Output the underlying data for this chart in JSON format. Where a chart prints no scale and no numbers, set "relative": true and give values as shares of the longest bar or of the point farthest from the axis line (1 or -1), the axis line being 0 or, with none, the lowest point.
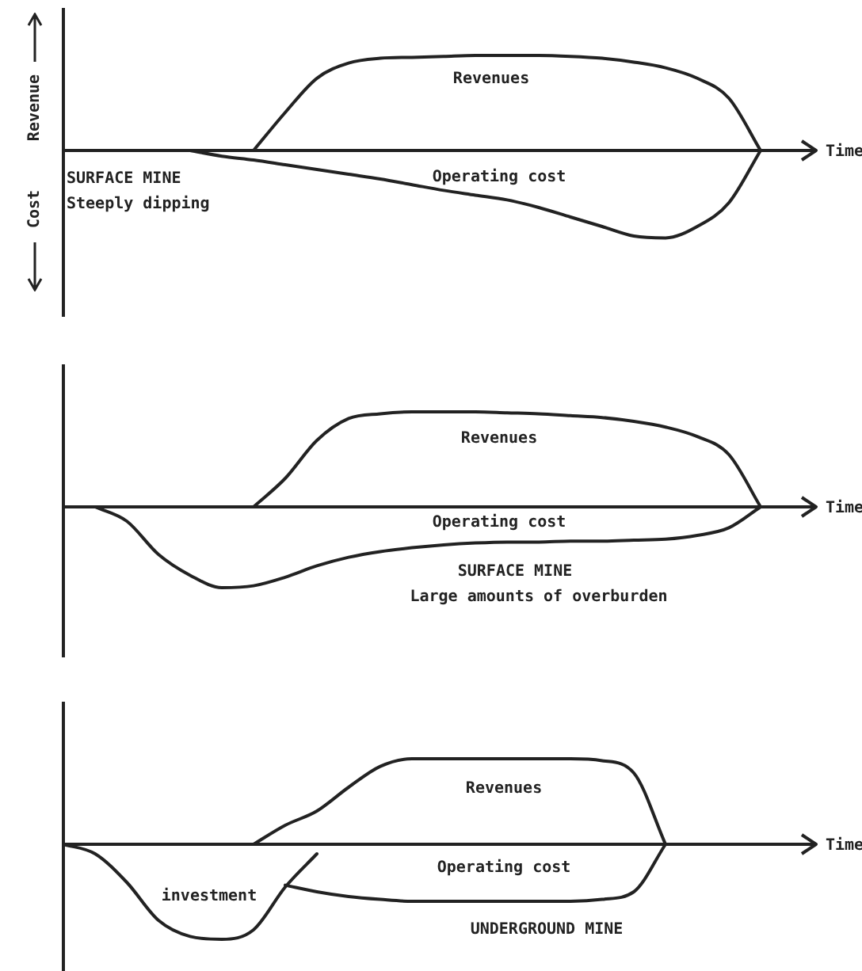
{
  "chart_data": [
    {
      "type": "line",
      "relative": true,
      "xlabel": "Time",
      "tick_labels": false,
      "categories": [
        null,
        null,
        null,
        null,
        null,
        null,
        null,
        null,
        null,
        null,
        null,
        null,
        null,
        null,
        null,
        null,
        null,
        null,
        null,
        null,
        null,
        null,
        null
      ],
      "series": [
        {
          "name": "Revenues",
          "color": "#222222",
          "values": [
            null,
            null,
            null,
            null,
            null,
            null,
            0,
            0.4,
            0.76,
            0.92,
            0.97,
            0.98,
            0.99,
            1,
            1,
            1,
            0.99,
            0.97,
            0.93,
            0.87,
            0.76,
            0.55,
            0
          ]
        },
        {
          "name": "Operating cost",
          "color": "#222222",
          "values": [
            null,
            null,
            null,
            null,
            0,
            -0.06,
            -0.1,
            -0.15,
            -0.2,
            -0.25,
            -0.3,
            -0.36,
            -0.42,
            -0.47,
            -0.52,
            -0.6,
            -0.7,
            -0.8,
            -0.9,
            -0.92,
            -0.8,
            -0.55,
            0
          ]
        }
      ],
      "annotations": [
        "Revenue",
        "Cost",
        "SURFACE MINE",
        "Steeply dipping"
      ]
    },
    {
      "type": "line",
      "relative": true,
      "xlabel": "Time",
      "tick_labels": false,
      "categories": [
        null,
        null,
        null,
        null,
        null,
        null,
        null,
        null,
        null,
        null,
        null,
        null,
        null,
        null,
        null,
        null,
        null,
        null,
        null,
        null,
        null,
        null,
        null
      ],
      "series": [
        {
          "name": "Revenues",
          "color": "#222222",
          "values": [
            null,
            null,
            null,
            null,
            null,
            null,
            0,
            0.3,
            0.7,
            0.93,
            0.98,
            1,
            1,
            1,
            0.99,
            0.98,
            0.96,
            0.94,
            0.9,
            0.84,
            0.74,
            0.55,
            0
          ]
        },
        {
          "name": "Operating cost",
          "color": "#222222",
          "values": [
            null,
            0,
            -0.15,
            -0.5,
            -0.72,
            -0.85,
            -0.83,
            -0.74,
            -0.62,
            -0.53,
            -0.47,
            -0.43,
            -0.4,
            -0.38,
            -0.37,
            -0.37,
            -0.36,
            -0.36,
            -0.35,
            -0.34,
            -0.3,
            -0.22,
            0
          ]
        }
      ],
      "annotations": [
        "SURFACE MINE",
        "Large amounts of overburden"
      ]
    },
    {
      "type": "line",
      "relative": true,
      "xlabel": "Time",
      "tick_labels": false,
      "categories": [
        null,
        null,
        null,
        null,
        null,
        null,
        null,
        null,
        null,
        null,
        null,
        null,
        null,
        null,
        null,
        null,
        null,
        null,
        null,
        null,
        null,
        null,
        null
      ],
      "series": [
        {
          "name": "Revenues",
          "color": "#222222",
          "values": [
            null,
            null,
            null,
            null,
            null,
            null,
            0,
            0.2,
            0.35,
            0.6,
            0.82,
            0.9,
            0.9,
            0.9,
            0.9,
            0.9,
            0.9,
            0.88,
            0.75,
            0,
            null,
            null,
            null
          ]
        },
        {
          "name": "Operating cost",
          "color": "#222222",
          "values": [
            null,
            null,
            null,
            null,
            null,
            null,
            null,
            -0.43,
            -0.5,
            -0.55,
            -0.58,
            -0.6,
            -0.6,
            -0.6,
            -0.6,
            -0.6,
            -0.6,
            -0.58,
            -0.5,
            0,
            null,
            null,
            null
          ]
        },
        {
          "name": "investment",
          "color": "#222222",
          "values": [
            0,
            -0.1,
            -0.4,
            -0.8,
            -0.97,
            -1,
            -0.9,
            -0.45,
            -0.1,
            null,
            null,
            null,
            null,
            null,
            null,
            null,
            null,
            null,
            null,
            null,
            null,
            null,
            null
          ]
        }
      ],
      "annotations": [
        "UNDERGROUND MINE"
      ]
    }
  ]
}
